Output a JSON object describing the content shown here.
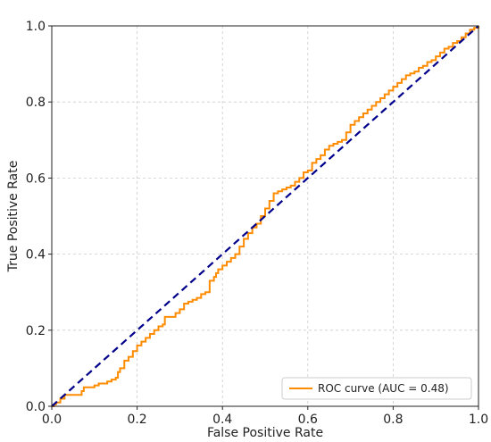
{
  "chart_data": {
    "type": "line",
    "xlabel": "False Positive Rate",
    "ylabel": "True Positive Rate",
    "xlim": [
      0,
      1
    ],
    "ylim": [
      0,
      1
    ],
    "xticks": [
      "0.0",
      "0.2",
      "0.4",
      "0.6",
      "0.8",
      "1.0"
    ],
    "yticks": [
      "0.0",
      "0.2",
      "0.4",
      "0.6",
      "0.8",
      "1.0"
    ],
    "grid": true,
    "legend_position": "bottom-right",
    "series": [
      {
        "name": "ROC curve (AUC = 0.48)",
        "color": "#ff8c00",
        "style": "step",
        "x": [
          0.0,
          0.005,
          0.01,
          0.02,
          0.03,
          0.035,
          0.04,
          0.05,
          0.06,
          0.07,
          0.075,
          0.08,
          0.09,
          0.1,
          0.11,
          0.12,
          0.13,
          0.14,
          0.15,
          0.155,
          0.16,
          0.17,
          0.18,
          0.19,
          0.2,
          0.21,
          0.22,
          0.23,
          0.24,
          0.25,
          0.26,
          0.265,
          0.27,
          0.28,
          0.29,
          0.3,
          0.31,
          0.32,
          0.33,
          0.34,
          0.35,
          0.36,
          0.37,
          0.38,
          0.385,
          0.39,
          0.4,
          0.41,
          0.42,
          0.43,
          0.44,
          0.45,
          0.46,
          0.47,
          0.48,
          0.49,
          0.5,
          0.51,
          0.52,
          0.53,
          0.54,
          0.55,
          0.56,
          0.57,
          0.58,
          0.59,
          0.6,
          0.61,
          0.62,
          0.63,
          0.64,
          0.65,
          0.66,
          0.67,
          0.68,
          0.69,
          0.7,
          0.71,
          0.72,
          0.73,
          0.74,
          0.75,
          0.76,
          0.77,
          0.78,
          0.79,
          0.8,
          0.81,
          0.82,
          0.83,
          0.84,
          0.85,
          0.86,
          0.87,
          0.88,
          0.89,
          0.9,
          0.91,
          0.92,
          0.93,
          0.94,
          0.95,
          0.96,
          0.97,
          0.98,
          0.99,
          1.0
        ],
        "y": [
          0.0,
          0.005,
          0.01,
          0.02,
          0.03,
          0.03,
          0.03,
          0.03,
          0.03,
          0.04,
          0.05,
          0.05,
          0.05,
          0.055,
          0.06,
          0.06,
          0.065,
          0.07,
          0.075,
          0.09,
          0.1,
          0.12,
          0.13,
          0.145,
          0.16,
          0.17,
          0.18,
          0.19,
          0.2,
          0.21,
          0.215,
          0.235,
          0.235,
          0.235,
          0.245,
          0.255,
          0.27,
          0.275,
          0.28,
          0.285,
          0.295,
          0.3,
          0.33,
          0.34,
          0.35,
          0.36,
          0.37,
          0.38,
          0.39,
          0.4,
          0.42,
          0.44,
          0.455,
          0.47,
          0.48,
          0.5,
          0.52,
          0.54,
          0.56,
          0.565,
          0.57,
          0.575,
          0.58,
          0.59,
          0.6,
          0.615,
          0.62,
          0.64,
          0.65,
          0.66,
          0.675,
          0.685,
          0.69,
          0.695,
          0.7,
          0.72,
          0.74,
          0.75,
          0.76,
          0.77,
          0.78,
          0.79,
          0.8,
          0.81,
          0.82,
          0.83,
          0.84,
          0.85,
          0.86,
          0.87,
          0.875,
          0.88,
          0.89,
          0.895,
          0.905,
          0.91,
          0.92,
          0.93,
          0.94,
          0.945,
          0.955,
          0.96,
          0.97,
          0.98,
          0.99,
          0.995,
          1.0
        ]
      },
      {
        "name": "",
        "color": "#00008b",
        "style": "dashed",
        "x": [
          0,
          1
        ],
        "y": [
          0,
          1
        ]
      }
    ]
  }
}
